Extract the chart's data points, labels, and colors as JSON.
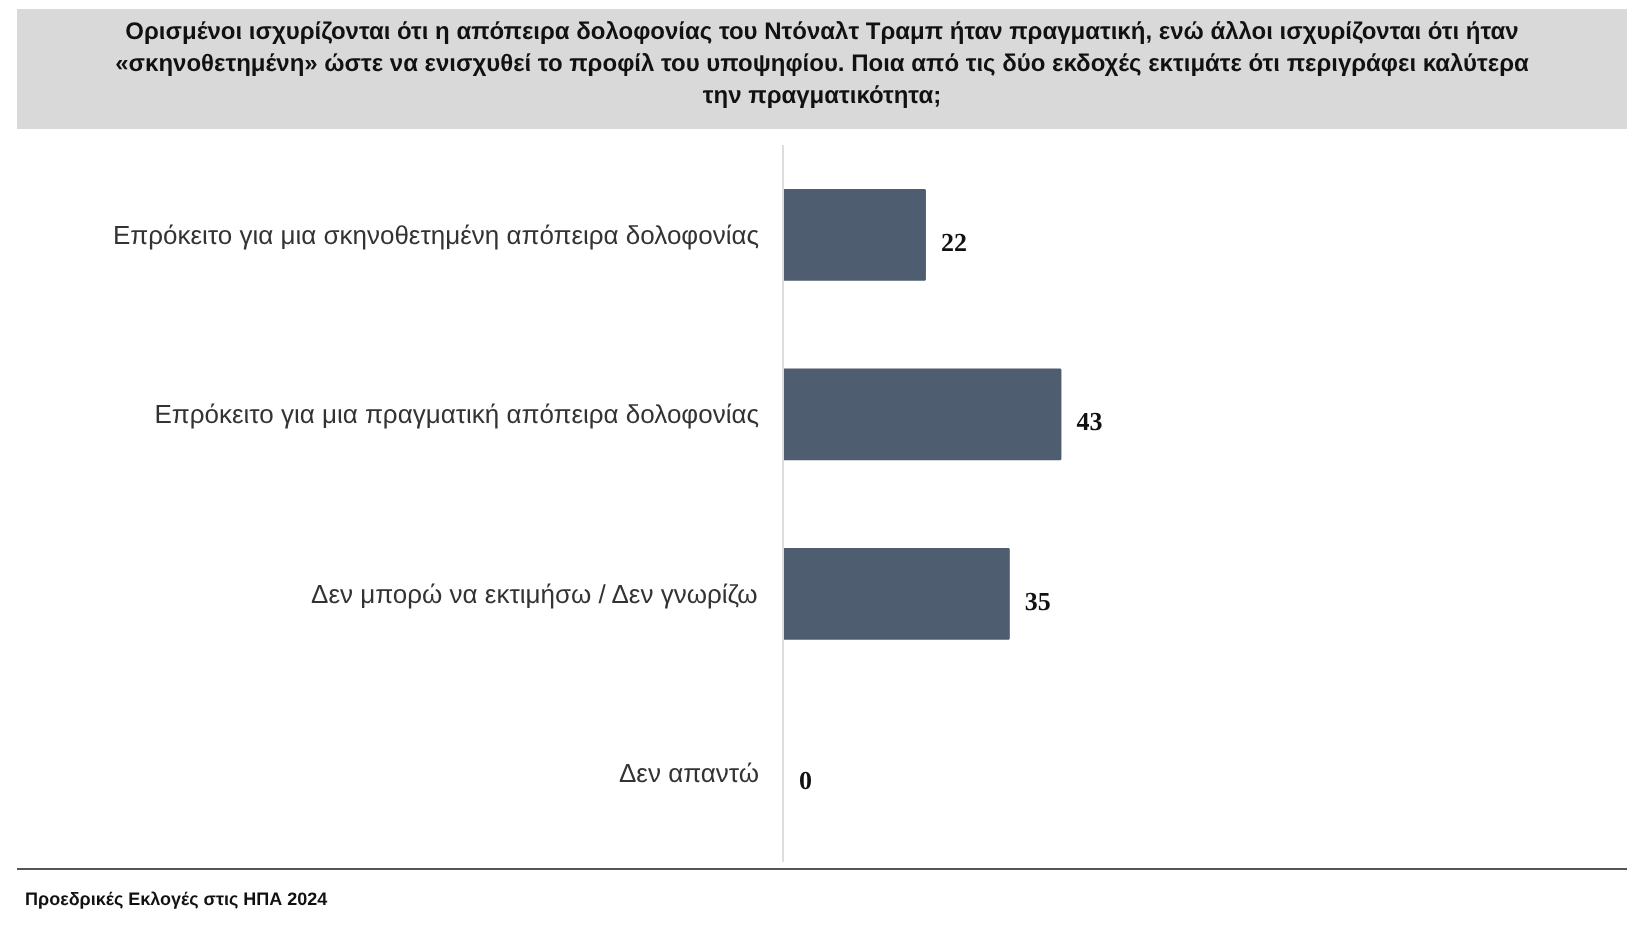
{
  "chart_data": {
    "type": "bar",
    "orientation": "horizontal",
    "title": "Ορισμένοι ισχυρίζονται ότι η απόπειρα δολοφονίας του Ντόναλτ Τραμπ ήταν πραγματική, ενώ άλλοι ισχυρίζονται ότι ήταν «σκηνοθετημένη» ώστε να ενισχυθεί το προφίλ του υποψηφίου. Ποια από τις δύο εκδοχές εκτιμάτε ότι περιγράφει καλύτερα την πραγματικότητα;",
    "categories": [
      "Επρόκειτο για μια σκηνοθετημένη απόπειρα δολοφονίας",
      "Επρόκειτο για μια πραγματική απόπειρα δολοφονίας",
      "Δεν μπορώ να εκτιμήσω / Δεν γνωρίζω",
      "Δεν απαντώ"
    ],
    "values": [
      22,
      43,
      35,
      0
    ],
    "color": "#4f5d70",
    "data_labels": true,
    "tick_labels": "y",
    "grid": false,
    "annotations": [
      "Προεδρικές Εκλογές στις ΗΠΑ 2024"
    ]
  }
}
